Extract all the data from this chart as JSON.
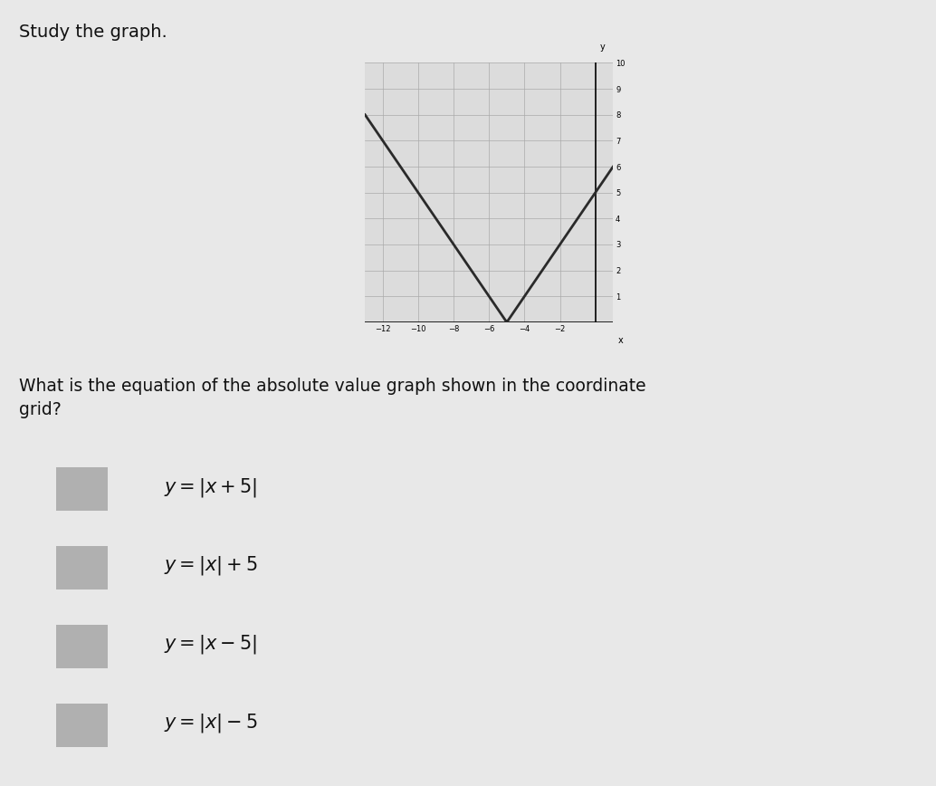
{
  "title": "Study the graph.",
  "question": "What is the equation of the absolute value graph shown in the coordinate\ngrid?",
  "graph": {
    "equation": "y=|x+5|",
    "vertex_x": -5,
    "vertex_y": 0,
    "x_min": -13,
    "x_max": 1,
    "y_min": 0,
    "y_max": 10,
    "x_ticks": [
      -12,
      -10,
      -8,
      -6,
      -4,
      -2
    ],
    "y_ticks": [
      1,
      2,
      3,
      4,
      5,
      6,
      7,
      8,
      9,
      10
    ],
    "line_color": "#2a2a2a",
    "grid_color": "#aaaaaa",
    "bg_color": "#dcdcdc",
    "yaxis_x": 0
  },
  "background_color": "#e8e8e8",
  "checkbox_color": "#b0b0b0",
  "text_color": "#111111",
  "choices_latex": [
    "y=|x+5|",
    "y=|x|+5",
    "y=|x-5|",
    "y=|x|-5"
  ]
}
